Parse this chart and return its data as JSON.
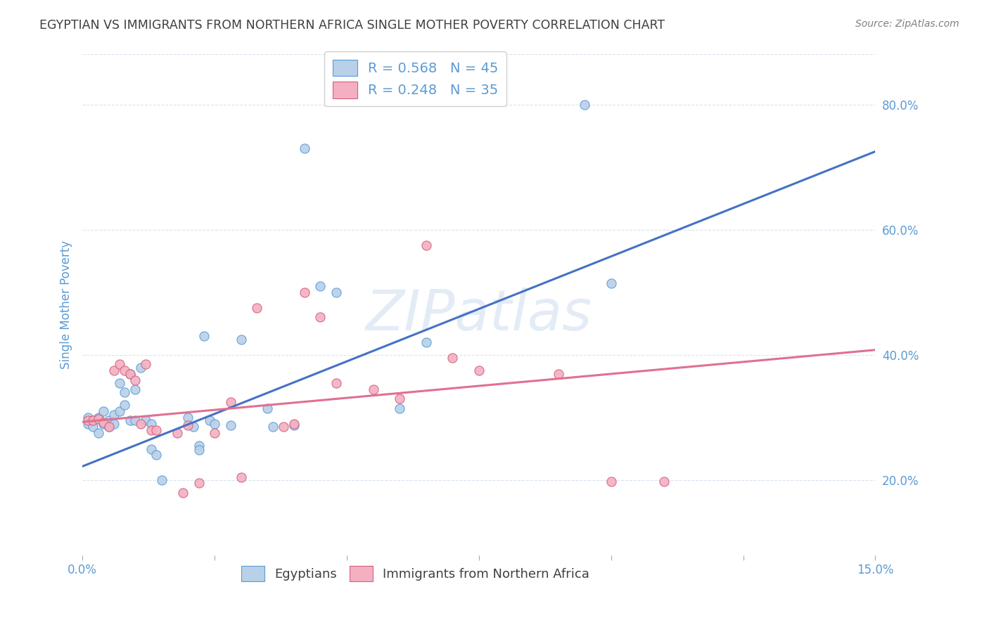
{
  "title": "EGYPTIAN VS IMMIGRANTS FROM NORTHERN AFRICA SINGLE MOTHER POVERTY CORRELATION CHART",
  "source": "Source: ZipAtlas.com",
  "ylabel": "Single Mother Poverty",
  "xlim": [
    0.0,
    0.15
  ],
  "ylim": [
    0.08,
    0.88
  ],
  "legend_items": [
    {
      "label": "R = 0.568   N = 45",
      "color": "#b8d0e8"
    },
    {
      "label": "R = 0.248   N = 35",
      "color": "#f4b0c0"
    }
  ],
  "blue_scatter_color": "#b8d0e8",
  "blue_edge_color": "#5b9bd5",
  "pink_scatter_color": "#f4b0c0",
  "pink_edge_color": "#d06080",
  "blue_line_color": "#4472c4",
  "pink_line_color": "#e07090",
  "blue_dots": [
    [
      0.001,
      0.3
    ],
    [
      0.001,
      0.29
    ],
    [
      0.002,
      0.295
    ],
    [
      0.002,
      0.285
    ],
    [
      0.003,
      0.3
    ],
    [
      0.003,
      0.275
    ],
    [
      0.004,
      0.31
    ],
    [
      0.004,
      0.29
    ],
    [
      0.005,
      0.295
    ],
    [
      0.005,
      0.285
    ],
    [
      0.006,
      0.305
    ],
    [
      0.006,
      0.29
    ],
    [
      0.007,
      0.355
    ],
    [
      0.007,
      0.31
    ],
    [
      0.008,
      0.34
    ],
    [
      0.008,
      0.32
    ],
    [
      0.009,
      0.37
    ],
    [
      0.009,
      0.295
    ],
    [
      0.01,
      0.345
    ],
    [
      0.01,
      0.295
    ],
    [
      0.011,
      0.38
    ],
    [
      0.012,
      0.295
    ],
    [
      0.013,
      0.29
    ],
    [
      0.013,
      0.25
    ],
    [
      0.014,
      0.24
    ],
    [
      0.015,
      0.2
    ],
    [
      0.02,
      0.3
    ],
    [
      0.021,
      0.285
    ],
    [
      0.022,
      0.255
    ],
    [
      0.022,
      0.248
    ],
    [
      0.023,
      0.43
    ],
    [
      0.024,
      0.295
    ],
    [
      0.025,
      0.29
    ],
    [
      0.028,
      0.288
    ],
    [
      0.03,
      0.425
    ],
    [
      0.035,
      0.315
    ],
    [
      0.036,
      0.285
    ],
    [
      0.04,
      0.288
    ],
    [
      0.042,
      0.73
    ],
    [
      0.045,
      0.51
    ],
    [
      0.048,
      0.5
    ],
    [
      0.06,
      0.315
    ],
    [
      0.065,
      0.42
    ],
    [
      0.095,
      0.8
    ],
    [
      0.1,
      0.515
    ]
  ],
  "pink_dots": [
    [
      0.001,
      0.295
    ],
    [
      0.002,
      0.295
    ],
    [
      0.003,
      0.298
    ],
    [
      0.004,
      0.292
    ],
    [
      0.005,
      0.285
    ],
    [
      0.006,
      0.375
    ],
    [
      0.007,
      0.385
    ],
    [
      0.008,
      0.375
    ],
    [
      0.009,
      0.37
    ],
    [
      0.01,
      0.36
    ],
    [
      0.011,
      0.29
    ],
    [
      0.012,
      0.385
    ],
    [
      0.013,
      0.28
    ],
    [
      0.014,
      0.28
    ],
    [
      0.018,
      0.275
    ],
    [
      0.019,
      0.18
    ],
    [
      0.02,
      0.288
    ],
    [
      0.022,
      0.195
    ],
    [
      0.025,
      0.275
    ],
    [
      0.028,
      0.325
    ],
    [
      0.03,
      0.205
    ],
    [
      0.033,
      0.475
    ],
    [
      0.038,
      0.285
    ],
    [
      0.04,
      0.29
    ],
    [
      0.042,
      0.5
    ],
    [
      0.045,
      0.46
    ],
    [
      0.048,
      0.355
    ],
    [
      0.055,
      0.345
    ],
    [
      0.06,
      0.33
    ],
    [
      0.065,
      0.575
    ],
    [
      0.07,
      0.395
    ],
    [
      0.075,
      0.375
    ],
    [
      0.09,
      0.37
    ],
    [
      0.1,
      0.198
    ],
    [
      0.11,
      0.198
    ]
  ],
  "blue_line_x": [
    0.0,
    0.15
  ],
  "blue_line_y": [
    0.222,
    0.725
  ],
  "pink_line_x": [
    0.0,
    0.15
  ],
  "pink_line_y": [
    0.293,
    0.408
  ],
  "watermark": "ZIPatlas",
  "background_color": "#ffffff",
  "grid_color": "#d8e4f0",
  "title_color": "#404040",
  "axis_label_color": "#5b9bd5",
  "tick_color": "#5b9bd5",
  "legend_text_color": "#5b9bd5",
  "source_color": "#808080",
  "bottom_legend": [
    "Egyptians",
    "Immigrants from Northern Africa"
  ],
  "bottom_legend_color": "#404040"
}
